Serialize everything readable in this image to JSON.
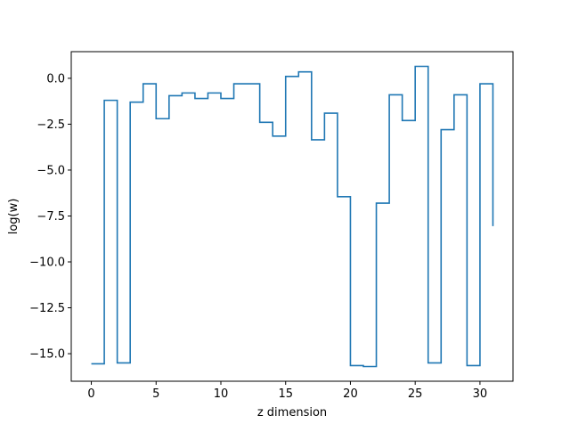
{
  "chart_data": {
    "type": "line",
    "step": "post",
    "xlabel": "z dimension",
    "ylabel": "log(w)",
    "xlim": [
      -1.55,
      32.55
    ],
    "ylim": [
      -16.5,
      1.45
    ],
    "x_ticks": [
      0,
      5,
      10,
      15,
      20,
      25,
      30
    ],
    "x_tick_labels": [
      "0",
      "5",
      "10",
      "15",
      "20",
      "25",
      "30"
    ],
    "y_ticks": [
      0,
      -2.5,
      -5,
      -7.5,
      -10,
      -12.5,
      -15
    ],
    "y_tick_labels": [
      "0.0",
      "−2.5",
      "−5.0",
      "−7.5",
      "−10.0",
      "−12.5",
      "−15.0"
    ],
    "grid": false,
    "series": [
      {
        "color": "#1f77b4",
        "x": [
          0,
          1,
          2,
          3,
          4,
          5,
          6,
          7,
          8,
          9,
          10,
          11,
          12,
          13,
          14,
          15,
          16,
          17,
          18,
          19,
          20,
          21,
          22,
          23,
          24,
          25,
          26,
          27,
          28,
          29,
          30,
          31
        ],
        "values": [
          -15.55,
          -1.2,
          -15.5,
          -1.3,
          -0.3,
          -2.2,
          -0.95,
          -0.8,
          -1.1,
          -0.8,
          -1.1,
          -0.3,
          -0.3,
          -2.4,
          -3.15,
          0.1,
          0.35,
          -3.35,
          -1.9,
          -6.45,
          -15.65,
          -15.7,
          -6.8,
          -0.9,
          -2.3,
          0.65,
          -15.5,
          -2.8,
          -0.9,
          -15.65,
          -0.3,
          -8.05
        ]
      }
    ]
  }
}
